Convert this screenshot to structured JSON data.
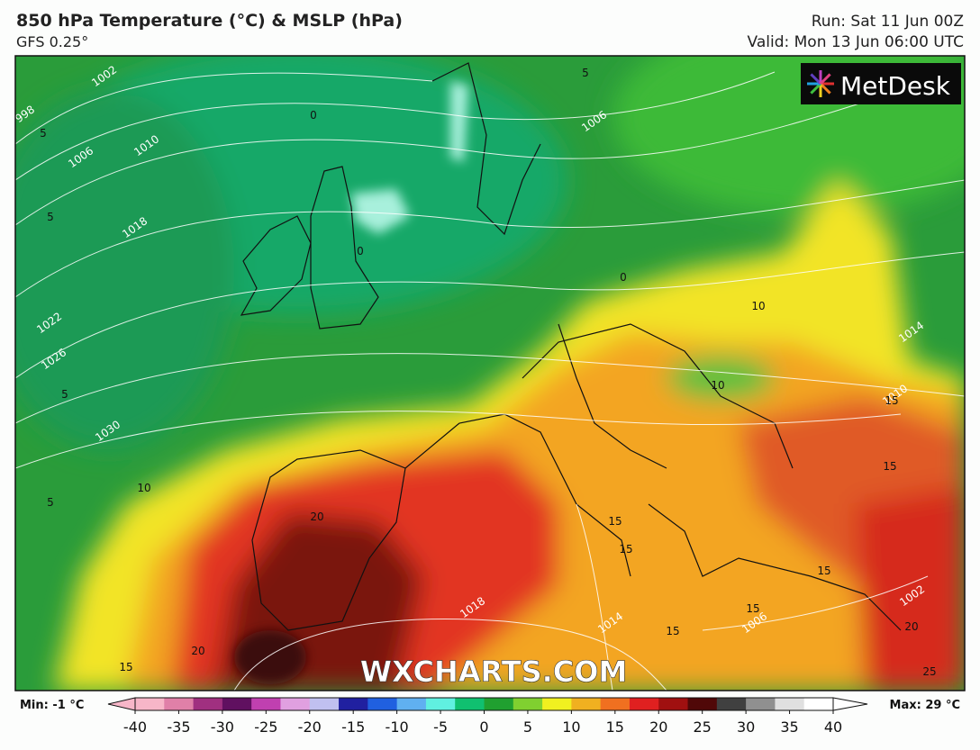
{
  "header": {
    "title": "850 hPa Temperature (°C) & MSLP (hPa)",
    "subtitle": "GFS 0.25°",
    "run": "Run: Sat 11 Jun 00Z",
    "valid": "Valid: Mon 13 Jun 06:00 UTC"
  },
  "logo": "MetDesk",
  "watermark": "WXCHARTS.COM",
  "isobar_labels": [
    1002,
    998,
    1006,
    1010,
    1018,
    1022,
    1026,
    1030,
    1006,
    1014,
    1010,
    1018,
    1014,
    1006,
    1002
  ],
  "temperature_labels": [
    5,
    0,
    0,
    5,
    5,
    10,
    5,
    0,
    10,
    10,
    15,
    15,
    20,
    15,
    20,
    15,
    15,
    15,
    15,
    20,
    25,
    15,
    5
  ],
  "colorbar": {
    "min_label": "Min: -1 °C",
    "max_label": "Max: 29 °C",
    "ticks": [
      -40,
      -35,
      -30,
      -25,
      -20,
      -15,
      -10,
      -5,
      0,
      5,
      10,
      15,
      20,
      25,
      30,
      35,
      40
    ],
    "colors": [
      "#f7b6c8",
      "#e080a8",
      "#a03080",
      "#601060",
      "#c040b0",
      "#e0a0e0",
      "#c0c0f0",
      "#2020a0",
      "#2060e0",
      "#60b0f0",
      "#60f0e0",
      "#10c070",
      "#20a030",
      "#80d030",
      "#f0f020",
      "#f0b020",
      "#f07020",
      "#e02020",
      "#a01010",
      "#500808",
      "#404040",
      "#909090",
      "#e0e0e0",
      "#ffffff"
    ]
  }
}
